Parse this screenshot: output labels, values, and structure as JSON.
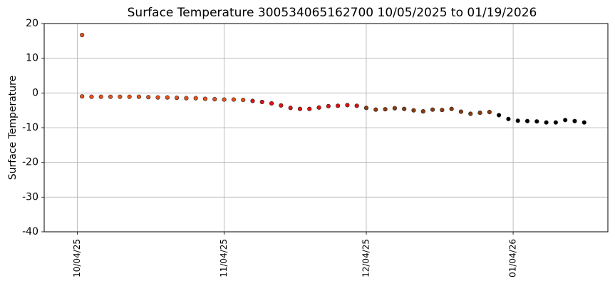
{
  "chart_data": {
    "type": "scatter",
    "title": "Surface Temperature 300534065162700  10/05/2025 to 01/19/2026",
    "y_label": "Surface Temperature",
    "x": [
      "10/05/25",
      "10/05/25",
      "10/07/25",
      "10/09/25",
      "10/11/25",
      "10/13/25",
      "10/15/25",
      "10/17/25",
      "10/19/25",
      "10/21/25",
      "10/23/25",
      "10/25/25",
      "10/27/25",
      "10/29/25",
      "10/31/25",
      "11/02/25",
      "11/04/25",
      "11/06/25",
      "11/08/25",
      "11/10/25",
      "11/12/25",
      "11/14/25",
      "11/16/25",
      "11/18/25",
      "11/20/25",
      "11/22/25",
      "11/24/25",
      "11/26/25",
      "11/28/25",
      "11/30/25",
      "12/02/25",
      "12/04/25",
      "12/06/25",
      "12/08/25",
      "12/10/25",
      "12/12/25",
      "12/14/25",
      "12/16/25",
      "12/18/25",
      "12/20/25",
      "12/22/25",
      "12/24/25",
      "12/26/25",
      "12/28/25",
      "12/30/25",
      "01/01/26",
      "01/03/26",
      "01/05/26",
      "01/07/26",
      "01/09/26",
      "01/11/26",
      "01/13/26",
      "01/15/26",
      "01/17/26",
      "01/19/26"
    ],
    "series": [
      {
        "values": [
          16.7,
          -1.0,
          -1.1,
          -1.1,
          -1.1,
          -1.1,
          -1.1,
          -1.1,
          -1.2,
          -1.3,
          -1.3,
          -1.4,
          -1.5,
          -1.5,
          -1.7,
          -1.8,
          -1.9,
          -1.9,
          -2.0,
          -2.3,
          -2.6,
          -3.0,
          -3.6,
          -4.3,
          -4.6,
          -4.6,
          -4.2,
          -3.8,
          -3.7,
          -3.5,
          -3.7,
          -4.3,
          -4.8,
          -4.7,
          -4.4,
          -4.6,
          -5.0,
          -5.3,
          -4.8,
          -4.9,
          -4.6,
          -5.4,
          -6.0,
          -5.7,
          -5.5,
          -6.4,
          -7.5,
          -8.0,
          -8.1,
          -8.2,
          -8.5,
          -8.5,
          -7.8,
          -8.1,
          -8.5
        ],
        "colors": [
          "#e8501a",
          "#e8501a",
          "#e8501a",
          "#e8501a",
          "#e8501a",
          "#e8501a",
          "#e8501a",
          "#e8501a",
          "#e8501a",
          "#e8501a",
          "#e8501a",
          "#e8501a",
          "#e8501a",
          "#e8501a",
          "#e8501a",
          "#e8501a",
          "#e8501a",
          "#e8501a",
          "#e8501a",
          "#e01010",
          "#e01010",
          "#e01010",
          "#e01010",
          "#e01010",
          "#e01010",
          "#e01010",
          "#e01010",
          "#e01010",
          "#e01010",
          "#e01010",
          "#e01010",
          "#8a3a0e",
          "#8a3a0e",
          "#8a3a0e",
          "#8a3a0e",
          "#8a3a0e",
          "#8a3a0e",
          "#8a3a0e",
          "#8a3a0e",
          "#8a3a0e",
          "#8a3a0e",
          "#8a3a0e",
          "#8a3a0e",
          "#8a3a0e",
          "#8a3a0e",
          "#000000",
          "#000000",
          "#000000",
          "#000000",
          "#000000",
          "#000000",
          "#000000",
          "#000000",
          "#000000",
          "#000000"
        ]
      }
    ],
    "xlim": [
      "09/27/25",
      "01/24/26"
    ],
    "xticks": [
      "10/04/25",
      "11/04/25",
      "12/04/25",
      "01/04/26"
    ],
    "ylim": [
      -40,
      20
    ],
    "yticks": [
      -40,
      -30,
      -20,
      -10,
      0,
      10,
      20
    ],
    "grid": true
  }
}
